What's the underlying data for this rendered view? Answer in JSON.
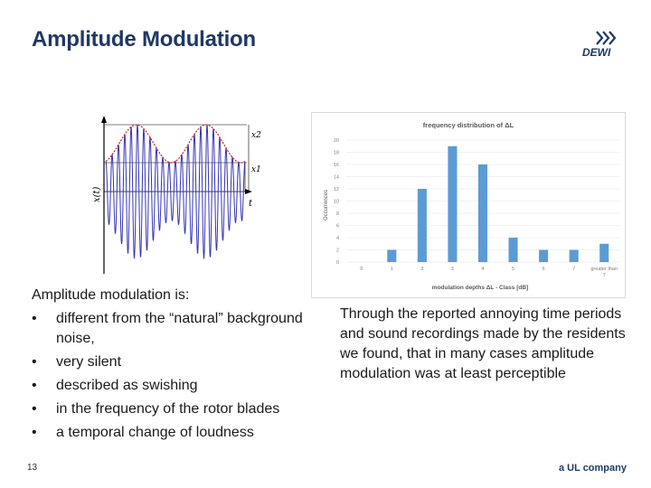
{
  "slide": {
    "title": "Amplitude Modulation",
    "page_number": "13",
    "footer_brand": "a UL company",
    "logo_text": "DEWI"
  },
  "left_text": {
    "intro": "Amplitude modulation is:",
    "bullets": [
      "different from the “natural” background noise,",
      "very silent",
      "described as swishing",
      "in the frequency of the rotor blades",
      "a temporal change of loudness"
    ]
  },
  "right_text": {
    "paragraph": "Through the reported annoying time periods and sound recordings made by the residents we found, that in many cases amplitude modulation was at least perceptible"
  },
  "waveform": {
    "y_label": "x(t)",
    "x_label": "t",
    "level_high": "x2",
    "level_low": "x1"
  },
  "chart_data": {
    "type": "bar",
    "title": "frequency distribution of ΔL",
    "xlabel": "modulation depths ΔL - Class [dB]",
    "ylabel": "Occurrences",
    "categories": [
      "0",
      "1",
      "2",
      "3",
      "4",
      "5",
      "6",
      "7",
      "greater than 7"
    ],
    "values": [
      0,
      2,
      12,
      19,
      16,
      4,
      2,
      2,
      3
    ],
    "ylim": [
      0,
      20
    ],
    "yticks": [
      0,
      2,
      4,
      6,
      8,
      10,
      12,
      14,
      16,
      18,
      20
    ],
    "grid": true,
    "bar_color": "#5b9bd5"
  }
}
